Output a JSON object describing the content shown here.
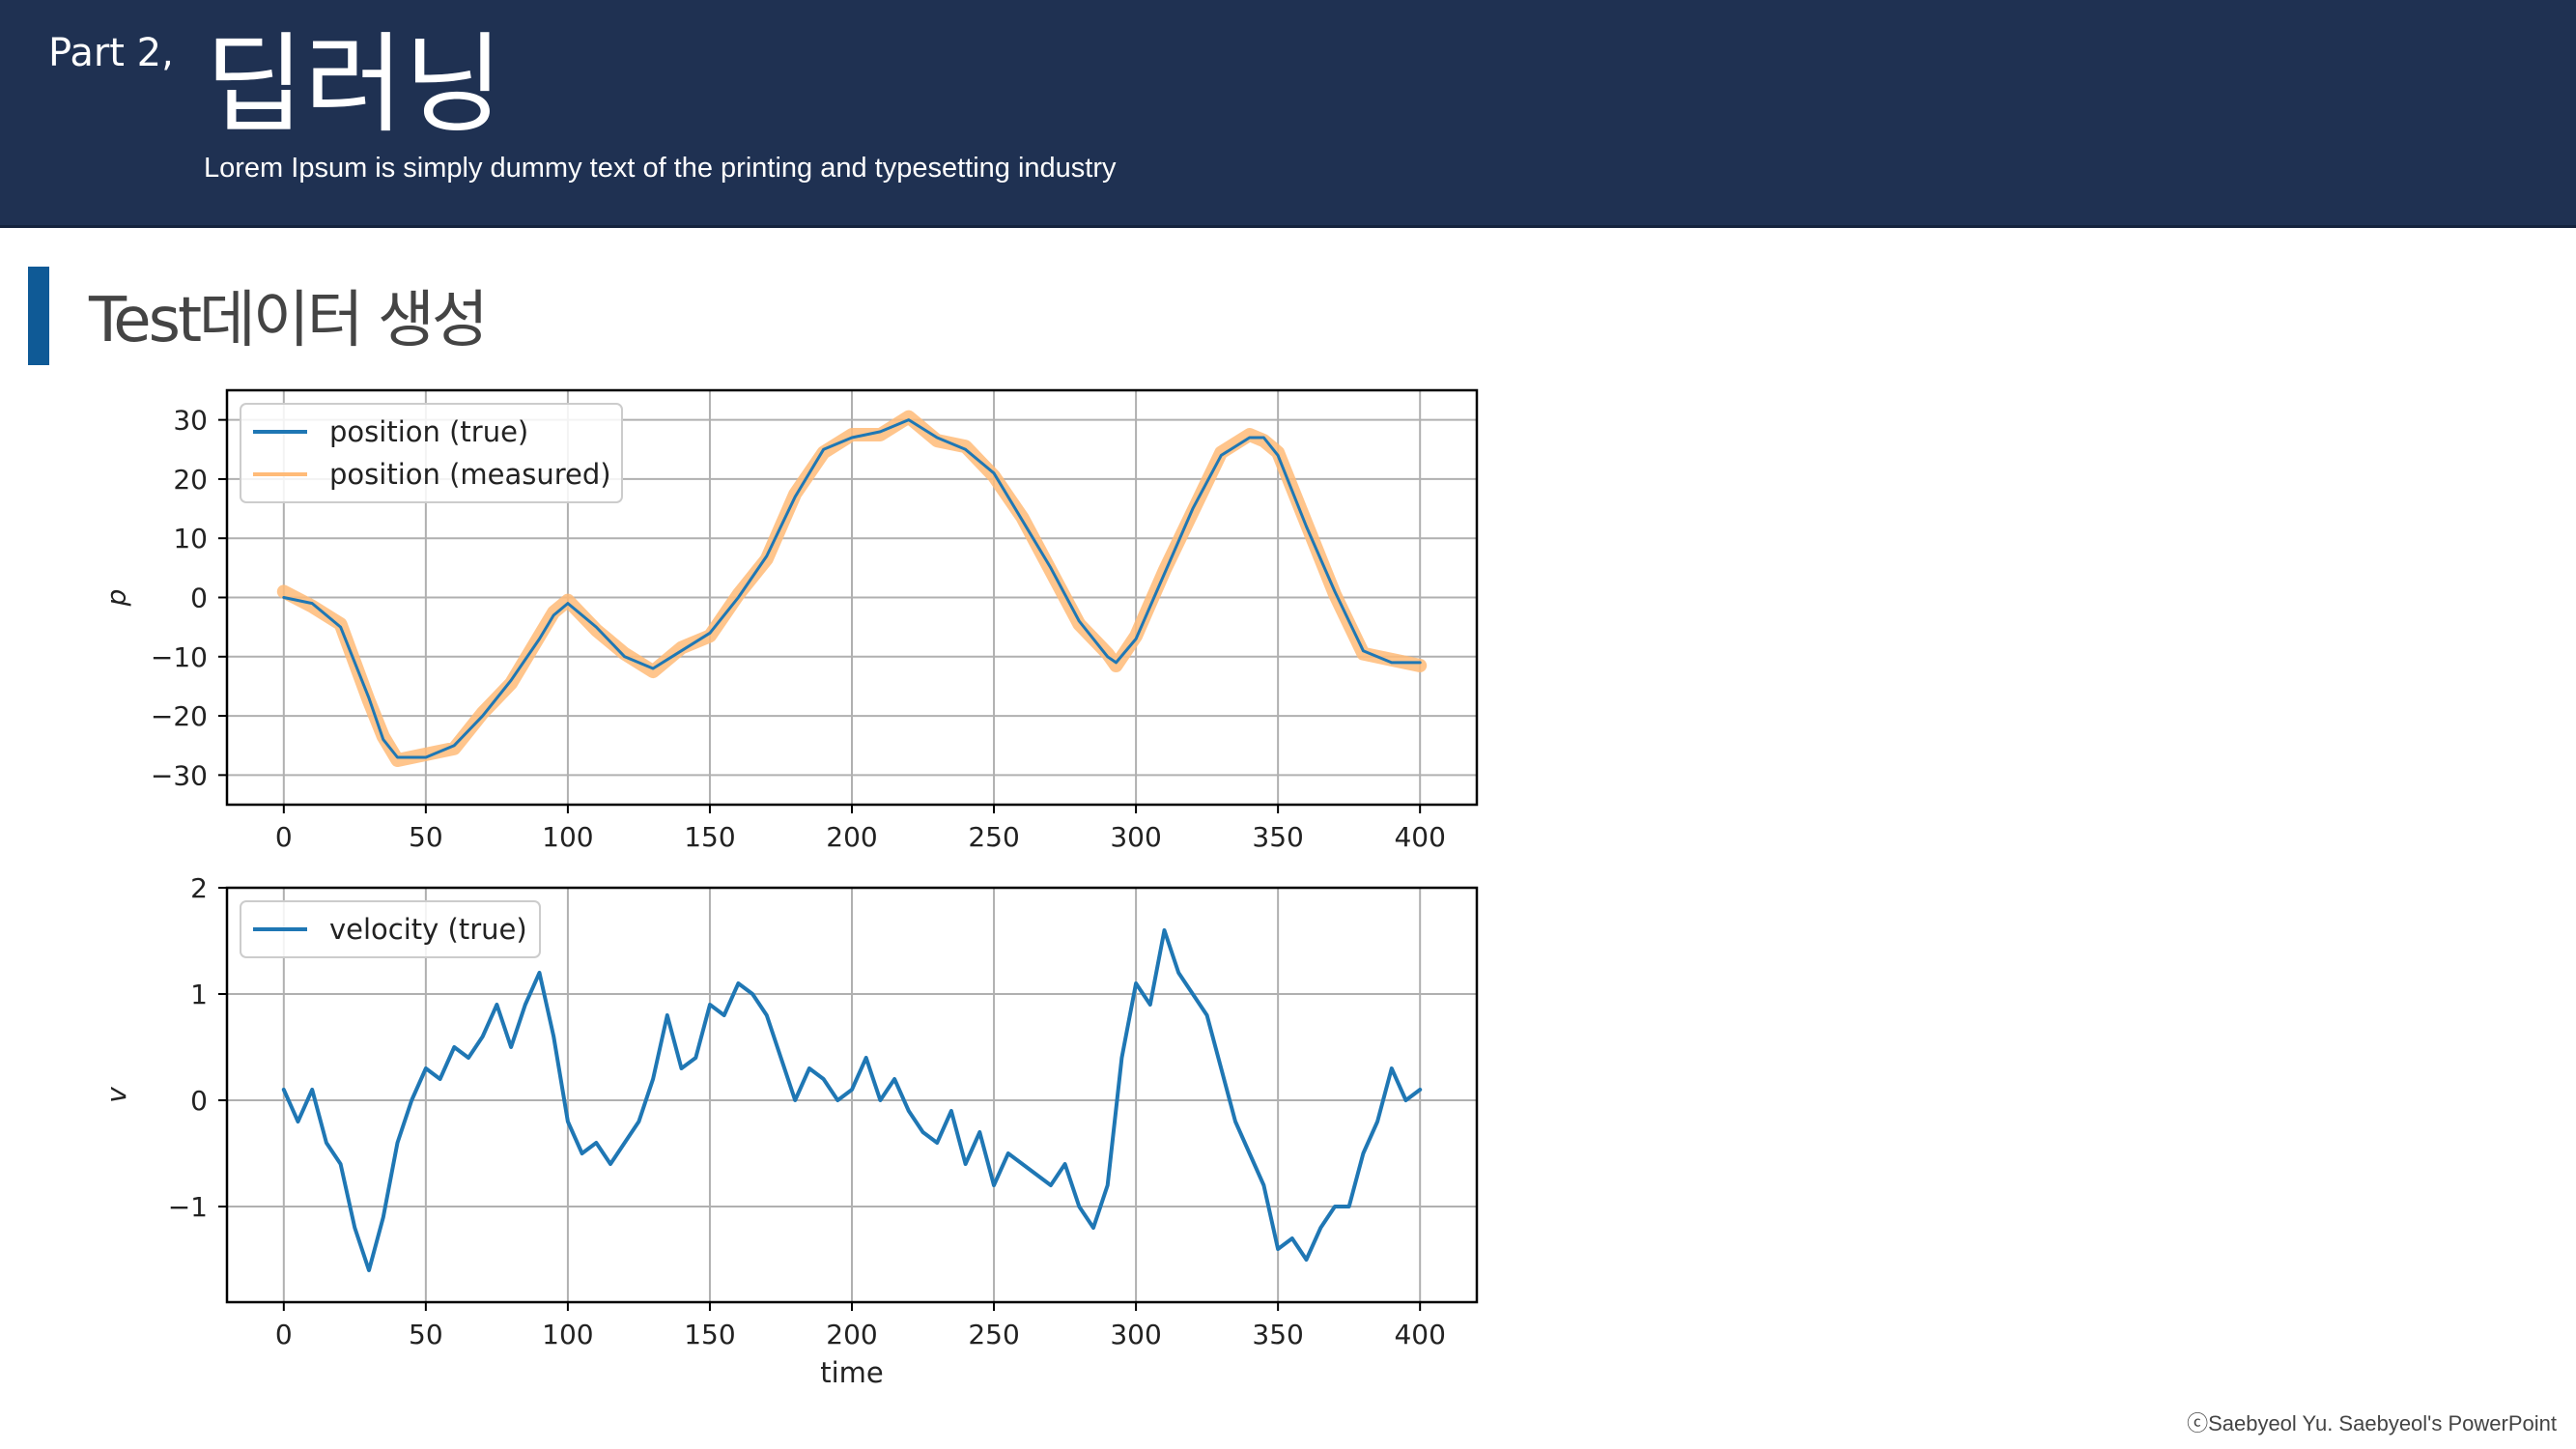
{
  "header": {
    "part_label": "Part 2,",
    "title": "딥러닝",
    "subtitle": "Lorem Ipsum is simply dummy text of the printing and typesetting industry"
  },
  "section": {
    "title": "Test데이터 생성"
  },
  "footer": {
    "copyright": "ⓒSaebyeol Yu. Saebyeol's PowerPoint"
  },
  "colors": {
    "header_bg": "#1f3152",
    "accent": "#0f5a96",
    "true_line": "#1f77b4",
    "measured_line": "#ffbb78"
  },
  "chart_data": [
    {
      "type": "line",
      "xlabel": "",
      "ylabel": "p",
      "xlim": [
        -20,
        420
      ],
      "ylim": [
        -35,
        35
      ],
      "xticks": [
        0,
        50,
        100,
        150,
        200,
        250,
        300,
        350,
        400
      ],
      "yticks": [
        -30,
        -20,
        -10,
        0,
        10,
        20,
        30
      ],
      "grid": true,
      "legend_position": "top-left",
      "x": [
        0,
        10,
        20,
        30,
        35,
        40,
        50,
        60,
        70,
        80,
        90,
        95,
        100,
        110,
        120,
        130,
        140,
        150,
        160,
        170,
        180,
        190,
        200,
        210,
        220,
        230,
        240,
        250,
        260,
        270,
        280,
        290,
        293,
        300,
        310,
        320,
        330,
        340,
        345,
        350,
        360,
        370,
        380,
        390,
        400
      ],
      "series": [
        {
          "name": "position (true)",
          "values": [
            0,
            -1,
            -5,
            -17,
            -24,
            -27,
            -27,
            -25,
            -20,
            -14,
            -7,
            -3,
            -1,
            -5,
            -10,
            -12,
            -9,
            -6,
            0,
            7,
            17,
            25,
            27,
            28,
            30,
            27,
            25,
            21,
            13,
            5,
            -4,
            -10,
            -11,
            -7,
            4,
            15,
            24,
            27,
            27,
            24,
            12,
            1,
            -9,
            -11,
            -11
          ]
        },
        {
          "name": "position (measured)",
          "values": [
            1,
            -1.5,
            -4.5,
            -17.5,
            -23.5,
            -27.5,
            -26.5,
            -25.5,
            -19.5,
            -14.5,
            -6.5,
            -2.5,
            -0.5,
            -5.5,
            -9.5,
            -12.5,
            -8.5,
            -6.5,
            0.5,
            6.5,
            17.5,
            24.5,
            27.5,
            27.5,
            30.5,
            26.5,
            25.5,
            20.5,
            13.5,
            4.5,
            -4.5,
            -9.5,
            -11.5,
            -6.5,
            4.5,
            14.5,
            24.5,
            27.5,
            26.5,
            24.5,
            12.5,
            0.5,
            -9.5,
            -10.5,
            -11.5
          ]
        }
      ]
    },
    {
      "type": "line",
      "xlabel": "time",
      "ylabel": "v",
      "xlim": [
        -20,
        420
      ],
      "ylim": [
        -1.9,
        2
      ],
      "xticks": [
        0,
        50,
        100,
        150,
        200,
        250,
        300,
        350,
        400
      ],
      "yticks": [
        -1,
        0,
        1,
        2
      ],
      "grid": true,
      "legend_position": "top-left",
      "x": [
        0,
        5,
        10,
        15,
        20,
        25,
        30,
        35,
        40,
        45,
        50,
        55,
        60,
        65,
        70,
        75,
        80,
        85,
        90,
        95,
        100,
        105,
        110,
        115,
        120,
        125,
        130,
        135,
        140,
        145,
        150,
        155,
        160,
        165,
        170,
        175,
        180,
        185,
        190,
        195,
        200,
        205,
        210,
        215,
        220,
        225,
        230,
        235,
        240,
        245,
        250,
        255,
        260,
        265,
        270,
        275,
        280,
        285,
        290,
        295,
        300,
        305,
        310,
        315,
        320,
        325,
        330,
        335,
        340,
        345,
        350,
        355,
        360,
        365,
        370,
        375,
        380,
        385,
        390,
        395,
        400
      ],
      "series": [
        {
          "name": "velocity (true)",
          "values": [
            0.1,
            -0.2,
            0.1,
            -0.4,
            -0.6,
            -1.2,
            -1.6,
            -1.1,
            -0.4,
            0.0,
            0.3,
            0.2,
            0.5,
            0.4,
            0.6,
            0.9,
            0.5,
            0.9,
            1.2,
            0.6,
            -0.2,
            -0.5,
            -0.4,
            -0.6,
            -0.4,
            -0.2,
            0.2,
            0.8,
            0.3,
            0.4,
            0.9,
            0.8,
            1.1,
            1.0,
            0.8,
            0.4,
            0.0,
            0.3,
            0.2,
            0.0,
            0.1,
            0.4,
            0.0,
            0.2,
            -0.1,
            -0.3,
            -0.4,
            -0.1,
            -0.6,
            -0.3,
            -0.8,
            -0.5,
            -0.6,
            -0.7,
            -0.8,
            -0.6,
            -1.0,
            -1.2,
            -0.8,
            0.4,
            1.1,
            0.9,
            1.6,
            1.2,
            1.0,
            0.8,
            0.3,
            -0.2,
            -0.5,
            -0.8,
            -1.4,
            -1.3,
            -1.5,
            -1.2,
            -1.0,
            -1.0,
            -0.5,
            -0.2,
            0.3,
            0.0,
            0.1
          ]
        }
      ]
    }
  ]
}
